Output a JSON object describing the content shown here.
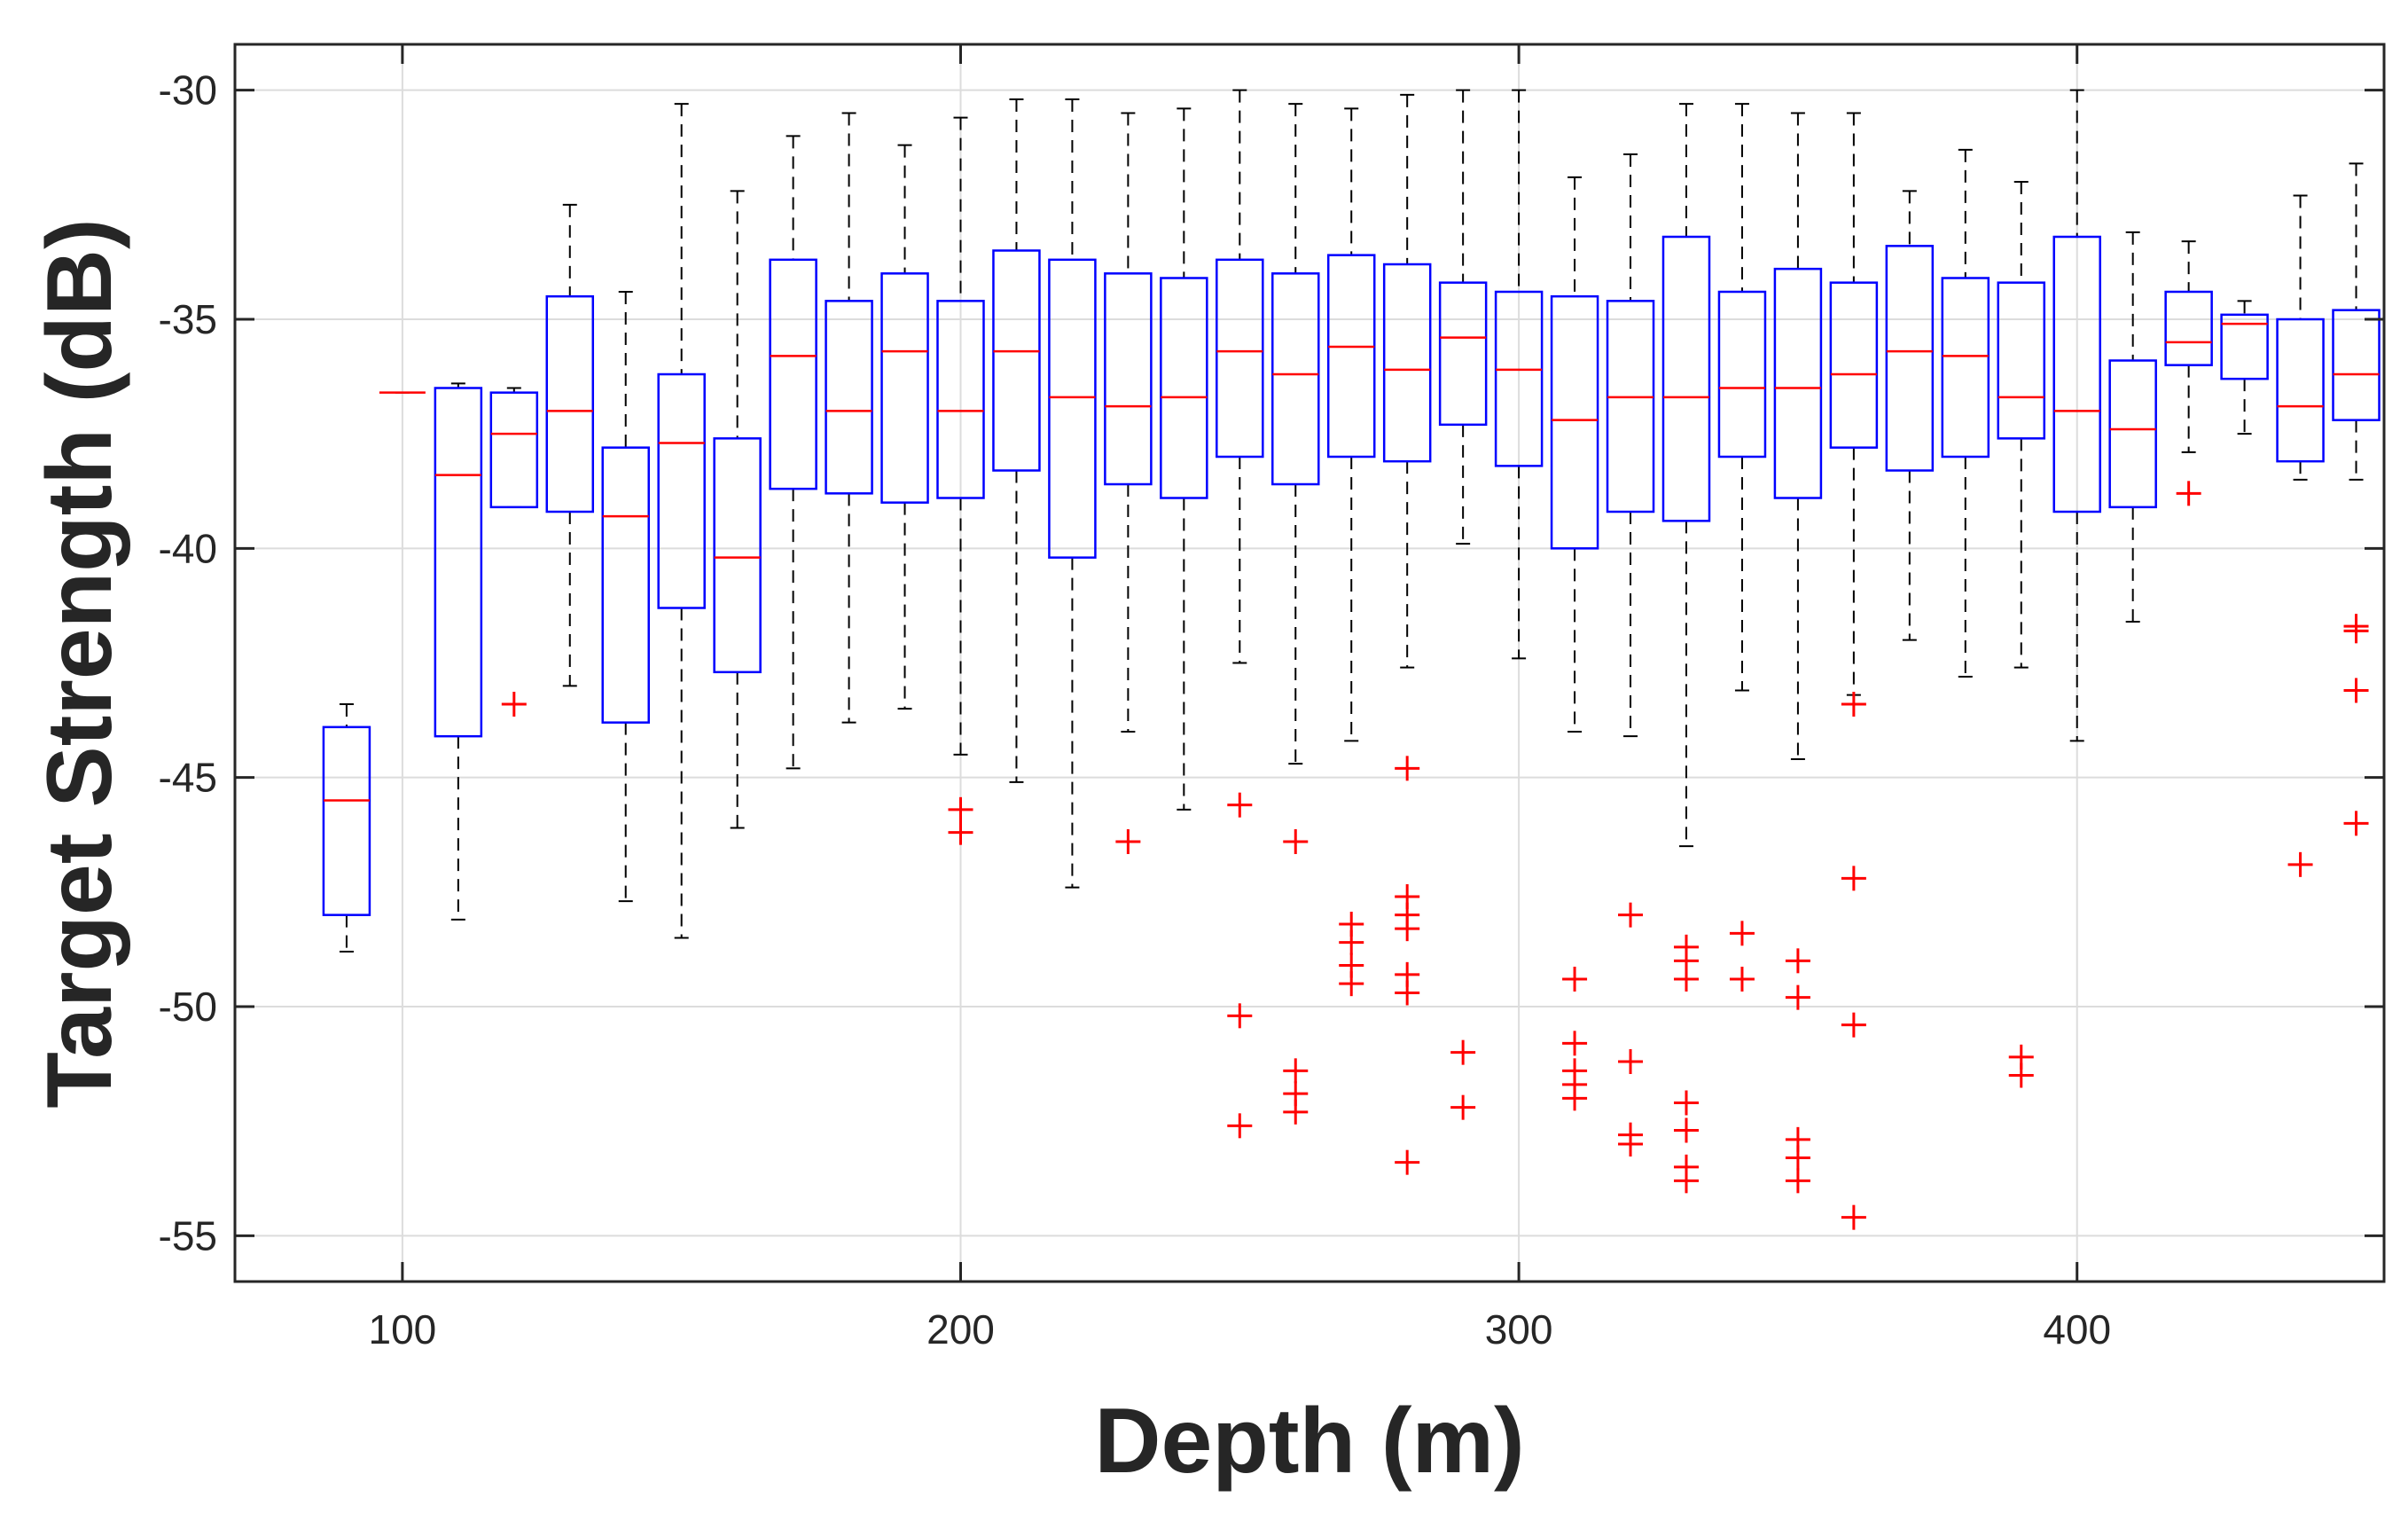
{
  "chart_data": {
    "type": "boxplot",
    "xlabel": "Depth (m)",
    "ylabel": "Target Strength (dB)",
    "xlim": [
      70,
      455
    ],
    "ylim": [
      -56,
      -29
    ],
    "xticks": [
      100,
      200,
      300,
      400
    ],
    "yticks": [
      -30,
      -35,
      -40,
      -45,
      -50,
      -55
    ],
    "grid": true,
    "colors": {
      "box": "#0000ff",
      "median": "#ff0000",
      "whisker": "#000000",
      "outlier": "#ff0000",
      "grid": "#dcdcdc",
      "axes": "#262626"
    },
    "boxes": [
      {
        "depth": 90,
        "whisker_low": -48.8,
        "q1": -48.0,
        "median": -45.5,
        "q3": -43.9,
        "whisker_high": -43.4,
        "outliers": []
      },
      {
        "depth": 100,
        "whisker_low": -36.6,
        "q1": -36.6,
        "median": -36.6,
        "q3": -36.6,
        "whisker_high": -36.6,
        "outliers": []
      },
      {
        "depth": 110,
        "whisker_low": -48.1,
        "q1": -44.1,
        "median": -38.4,
        "q3": -36.5,
        "whisker_high": -36.4,
        "outliers": []
      },
      {
        "depth": 120,
        "whisker_low": -39.1,
        "q1": -39.1,
        "median": -37.5,
        "q3": -36.6,
        "whisker_high": -36.5,
        "outliers": [
          -43.4
        ]
      },
      {
        "depth": 130,
        "whisker_low": -43.0,
        "q1": -39.2,
        "median": -37.0,
        "q3": -34.5,
        "whisker_high": -32.5,
        "outliers": []
      },
      {
        "depth": 140,
        "whisker_low": -47.7,
        "q1": -43.8,
        "median": -39.3,
        "q3": -37.8,
        "whisker_high": -34.4,
        "outliers": []
      },
      {
        "depth": 150,
        "whisker_low": -48.5,
        "q1": -41.3,
        "median": -37.7,
        "q3": -36.2,
        "whisker_high": -30.3,
        "outliers": []
      },
      {
        "depth": 160,
        "whisker_low": -46.1,
        "q1": -42.7,
        "median": -40.2,
        "q3": -37.6,
        "whisker_high": -32.2,
        "outliers": []
      },
      {
        "depth": 170,
        "whisker_low": -44.8,
        "q1": -38.7,
        "median": -35.8,
        "q3": -33.7,
        "whisker_high": -31.0,
        "outliers": []
      },
      {
        "depth": 180,
        "whisker_low": -43.8,
        "q1": -38.8,
        "median": -37.0,
        "q3": -34.6,
        "whisker_high": -30.5,
        "outliers": []
      },
      {
        "depth": 190,
        "whisker_low": -43.5,
        "q1": -39.0,
        "median": -35.7,
        "q3": -34.0,
        "whisker_high": -31.2,
        "outliers": []
      },
      {
        "depth": 200,
        "whisker_low": -44.5,
        "q1": -38.9,
        "median": -37.0,
        "q3": -34.6,
        "whisker_high": -30.6,
        "outliers": [
          -45.7,
          -46.2
        ]
      },
      {
        "depth": 210,
        "whisker_low": -45.1,
        "q1": -38.3,
        "median": -35.7,
        "q3": -33.5,
        "whisker_high": -30.2,
        "outliers": []
      },
      {
        "depth": 220,
        "whisker_low": -47.4,
        "q1": -40.2,
        "median": -36.7,
        "q3": -33.7,
        "whisker_high": -30.2,
        "outliers": []
      },
      {
        "depth": 230,
        "whisker_low": -44.0,
        "q1": -38.6,
        "median": -36.9,
        "q3": -34.0,
        "whisker_high": -30.5,
        "outliers": [
          -46.4
        ]
      },
      {
        "depth": 240,
        "whisker_low": -45.7,
        "q1": -38.9,
        "median": -36.7,
        "q3": -34.1,
        "whisker_high": -30.4,
        "outliers": []
      },
      {
        "depth": 250,
        "whisker_low": -42.5,
        "q1": -38.0,
        "median": -35.7,
        "q3": -33.7,
        "whisker_high": -30.0,
        "outliers": [
          -45.6,
          -50.2,
          -52.6
        ]
      },
      {
        "depth": 260,
        "whisker_low": -44.7,
        "q1": -38.6,
        "median": -36.2,
        "q3": -34.0,
        "whisker_high": -30.3,
        "outliers": [
          -46.4,
          -51.4,
          -51.9,
          -52.3
        ]
      },
      {
        "depth": 270,
        "whisker_low": -44.2,
        "q1": -38.0,
        "median": -35.6,
        "q3": -33.6,
        "whisker_high": -30.4,
        "outliers": [
          -48.2,
          -48.6,
          -49.1,
          -49.5
        ]
      },
      {
        "depth": 280,
        "whisker_low": -42.6,
        "q1": -38.1,
        "median": -36.1,
        "q3": -33.8,
        "whisker_high": -30.1,
        "outliers": [
          -44.8,
          -47.6,
          -48.0,
          -48.3,
          -49.3,
          -49.7,
          -53.4
        ]
      },
      {
        "depth": 290,
        "whisker_low": -39.9,
        "q1": -37.3,
        "median": -35.4,
        "q3": -34.2,
        "whisker_high": -30.0,
        "outliers": [
          -51.0,
          -52.2
        ]
      },
      {
        "depth": 300,
        "whisker_low": -42.4,
        "q1": -38.2,
        "median": -36.1,
        "q3": -34.4,
        "whisker_high": -30.0,
        "outliers": []
      },
      {
        "depth": 310,
        "whisker_low": -44.0,
        "q1": -40.0,
        "median": -37.2,
        "q3": -34.5,
        "whisker_high": -31.9,
        "outliers": [
          -49.4,
          -50.8,
          -51.4,
          -51.7,
          -52.0
        ]
      },
      {
        "depth": 320,
        "whisker_low": -44.1,
        "q1": -39.2,
        "median": -36.7,
        "q3": -34.6,
        "whisker_high": -31.4,
        "outliers": [
          -48.0,
          -51.2,
          -52.8,
          -53.0
        ]
      },
      {
        "depth": 330,
        "whisker_low": -46.5,
        "q1": -39.4,
        "median": -36.7,
        "q3": -33.2,
        "whisker_high": -30.3,
        "outliers": [
          -48.7,
          -49.0,
          -49.4,
          -52.1,
          -52.7,
          -53.5,
          -53.8
        ]
      },
      {
        "depth": 340,
        "whisker_low": -43.1,
        "q1": -38.0,
        "median": -36.5,
        "q3": -34.4,
        "whisker_high": -30.3,
        "outliers": [
          -48.4,
          -49.4
        ]
      },
      {
        "depth": 350,
        "whisker_low": -44.6,
        "q1": -38.9,
        "median": -36.5,
        "q3": -33.9,
        "whisker_high": -30.5,
        "outliers": [
          -49.0,
          -49.8,
          -52.9,
          -53.3,
          -53.8
        ]
      },
      {
        "depth": 360,
        "whisker_low": -43.2,
        "q1": -37.8,
        "median": -36.2,
        "q3": -34.2,
        "whisker_high": -30.5,
        "outliers": [
          -43.4,
          -47.2,
          -50.4,
          -54.6
        ]
      },
      {
        "depth": 370,
        "whisker_low": -42.0,
        "q1": -38.3,
        "median": -35.7,
        "q3": -33.4,
        "whisker_high": -32.2,
        "outliers": []
      },
      {
        "depth": 380,
        "whisker_low": -42.8,
        "q1": -38.0,
        "median": -35.8,
        "q3": -34.1,
        "whisker_high": -31.3,
        "outliers": []
      },
      {
        "depth": 390,
        "whisker_low": -42.6,
        "q1": -37.6,
        "median": -36.7,
        "q3": -34.2,
        "whisker_high": -32.0,
        "outliers": [
          -51.1,
          -51.5
        ]
      },
      {
        "depth": 400,
        "whisker_low": -44.2,
        "q1": -39.2,
        "median": -37.0,
        "q3": -33.2,
        "whisker_high": -30.0,
        "outliers": []
      },
      {
        "depth": 410,
        "whisker_low": -41.6,
        "q1": -39.1,
        "median": -37.4,
        "q3": -35.9,
        "whisker_high": -33.1,
        "outliers": []
      },
      {
        "depth": 420,
        "whisker_low": -37.9,
        "q1": -36.0,
        "median": -35.5,
        "q3": -34.4,
        "whisker_high": -33.3,
        "outliers": [
          -38.8
        ]
      },
      {
        "depth": 430,
        "whisker_low": -37.5,
        "q1": -36.3,
        "median": -35.1,
        "q3": -34.9,
        "whisker_high": -34.6,
        "outliers": []
      },
      {
        "depth": 440,
        "whisker_low": -38.5,
        "q1": -38.1,
        "median": -36.9,
        "q3": -35.0,
        "whisker_high": -32.3,
        "outliers": [
          -46.9
        ]
      },
      {
        "depth": 450,
        "whisker_low": -38.5,
        "q1": -37.2,
        "median": -36.2,
        "q3": -34.8,
        "whisker_high": -31.6,
        "outliers": [
          -41.7,
          -41.8,
          -43.1,
          -46.0
        ]
      }
    ]
  }
}
